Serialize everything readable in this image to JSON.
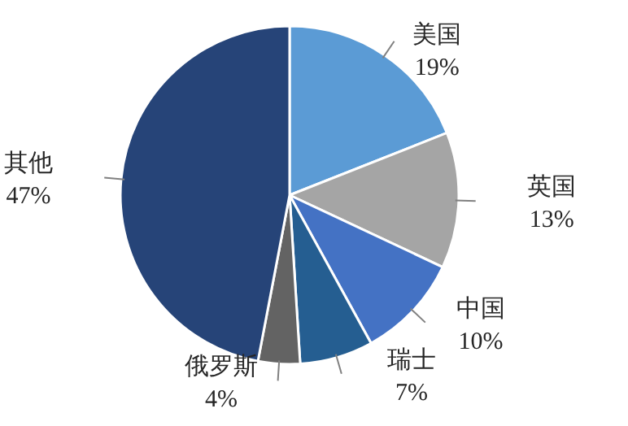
{
  "chart_data": {
    "type": "pie",
    "categories": [
      "美国",
      "英国",
      "中国",
      "瑞士",
      "俄罗斯",
      "其他"
    ],
    "values": [
      19,
      13,
      10,
      7,
      4,
      47
    ],
    "value_labels": [
      "19%",
      "13%",
      "10%",
      "7%",
      "4%",
      "47%"
    ],
    "colors": [
      "#5b9bd5",
      "#a5a5a5",
      "#4472c4",
      "#255e91",
      "#636363",
      "#264478"
    ]
  }
}
